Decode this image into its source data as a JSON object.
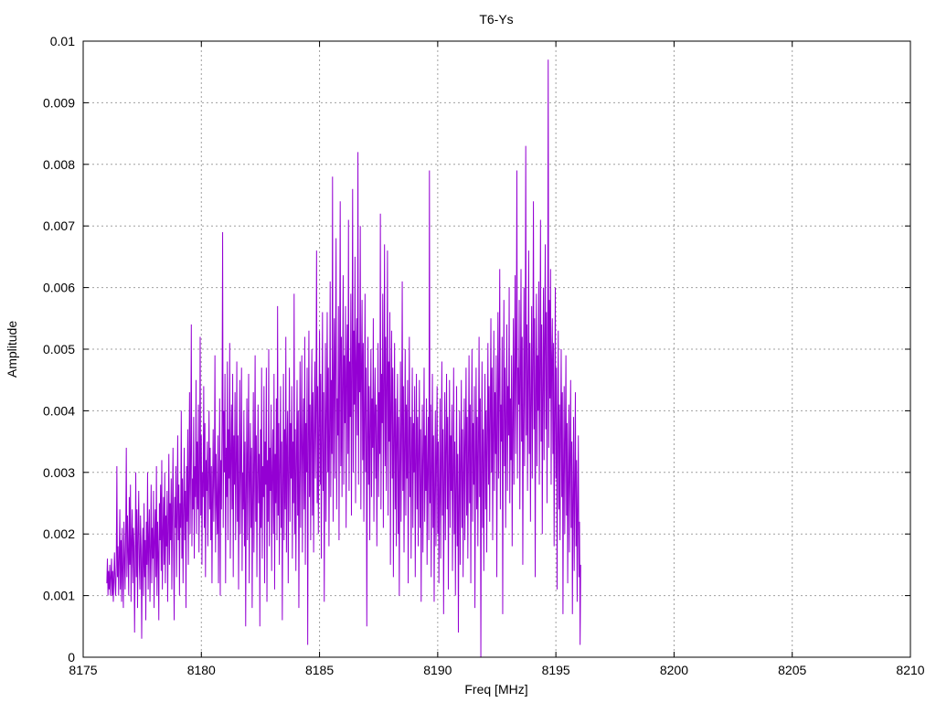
{
  "chart_data": {
    "type": "line",
    "title": "T6-Ys",
    "xlabel": "Freq [MHz]",
    "ylabel": "Amplitude",
    "xlim": [
      8175,
      8210
    ],
    "ylim": [
      0,
      0.01
    ],
    "x_ticks": [
      "8175",
      "8180",
      "8185",
      "8190",
      "8195",
      "8200",
      "8205",
      "8210"
    ],
    "y_ticks": [
      "0",
      "0.001",
      "0.002",
      "0.003",
      "0.004",
      "0.005",
      "0.006",
      "0.007",
      "0.008",
      "0.009",
      "0.01"
    ],
    "grid": true,
    "legend": "none",
    "series": [
      {
        "color": "#9400d3",
        "x_start": 8176.0,
        "x_step": 0.025,
        "values": [
          0.0012,
          0.0016,
          0.001,
          0.0014,
          0.0011,
          0.0015,
          0.001,
          0.0013,
          0.0016,
          0.001,
          0.0014,
          0.0009,
          0.0013,
          0.0017,
          0.0012,
          0.001,
          0.0015,
          0.0031,
          0.0013,
          0.0018,
          0.001,
          0.0016,
          0.0024,
          0.0011,
          0.0019,
          0.0009,
          0.0021,
          0.0014,
          0.0008,
          0.0022,
          0.0016,
          0.0011,
          0.002,
          0.0034,
          0.0013,
          0.0023,
          0.0017,
          0.001,
          0.0026,
          0.0015,
          0.0028,
          0.0009,
          0.0019,
          0.0024,
          0.0012,
          0.0021,
          0.0018,
          0.0004,
          0.0016,
          0.003,
          0.0013,
          0.0024,
          0.0008,
          0.002,
          0.0027,
          0.0015,
          0.0011,
          0.0023,
          0.0018,
          0.0003,
          0.0016,
          0.0021,
          0.001,
          0.0025,
          0.0013,
          0.0019,
          0.0006,
          0.0022,
          0.0015,
          0.003,
          0.0011,
          0.0019,
          0.0024,
          0.0009,
          0.0017,
          0.0028,
          0.0012,
          0.0021,
          0.0016,
          0.0027,
          0.0008,
          0.0019,
          0.0024,
          0.0013,
          0.0031,
          0.001,
          0.0022,
          0.0017,
          0.0006,
          0.0025,
          0.0019,
          0.0028,
          0.0014,
          0.0032,
          0.0011,
          0.002,
          0.0026,
          0.0015,
          0.003,
          0.0012,
          0.0023,
          0.0018,
          0.0027,
          0.0009,
          0.0021,
          0.0033,
          0.0015,
          0.0025,
          0.0019,
          0.0029,
          0.0011,
          0.0024,
          0.0034,
          0.0018,
          0.0006,
          0.0026,
          0.0021,
          0.0031,
          0.0013,
          0.0023,
          0.0036,
          0.0019,
          0.0028,
          0.001,
          0.0025,
          0.0021,
          0.004,
          0.0016,
          0.0029,
          0.0012,
          0.0024,
          0.0034,
          0.0019,
          0.0027,
          0.0008,
          0.0031,
          0.0022,
          0.0037,
          0.0015,
          0.0028,
          0.0043,
          0.002,
          0.0033,
          0.0054,
          0.0018,
          0.0029,
          0.0024,
          0.0039,
          0.0016,
          0.0031,
          0.0026,
          0.0045,
          0.002,
          0.0035,
          0.0024,
          0.0041,
          0.0017,
          0.0029,
          0.0052,
          0.0023,
          0.0036,
          0.0015,
          0.003,
          0.0026,
          0.0044,
          0.0021,
          0.0038,
          0.0013,
          0.0032,
          0.0027,
          0.0035,
          0.0018,
          0.0029,
          0.004,
          0.0024,
          0.0034,
          0.0019,
          0.0031,
          0.0012,
          0.0027,
          0.0037,
          0.0022,
          0.003,
          0.0049,
          0.0017,
          0.0033,
          0.0025,
          0.002,
          0.0036,
          0.0012,
          0.0028,
          0.0042,
          0.001,
          0.0032,
          0.0024,
          0.0038,
          0.0069,
          0.0021,
          0.004,
          0.003,
          0.0046,
          0.0012,
          0.0034,
          0.0026,
          0.0048,
          0.0019,
          0.0037,
          0.0029,
          0.0051,
          0.0016,
          0.0033,
          0.0041,
          0.0024,
          0.0046,
          0.0013,
          0.0036,
          0.0028,
          0.0043,
          0.0019,
          0.0031,
          0.0048,
          0.0022,
          0.0036,
          0.0011,
          0.0029,
          0.0045,
          0.002,
          0.0033,
          0.0047,
          0.0014,
          0.003,
          0.0024,
          0.004,
          0.0018,
          0.0035,
          0.0005,
          0.0027,
          0.0042,
          0.0019,
          0.0033,
          0.0046,
          0.0012,
          0.0029,
          0.0038,
          0.0021,
          0.0034,
          0.0008,
          0.0026,
          0.0043,
          0.0017,
          0.0031,
          0.0049,
          0.0022,
          0.0036,
          0.0013,
          0.0029,
          0.0041,
          0.0025,
          0.0033,
          0.0005,
          0.0037,
          0.0021,
          0.0047,
          0.0016,
          0.0031,
          0.0026,
          0.0044,
          0.0012,
          0.0035,
          0.0028,
          0.0047,
          0.0009,
          0.0032,
          0.0022,
          0.005,
          0.0018,
          0.0034,
          0.0027,
          0.0041,
          0.0014,
          0.003,
          0.0037,
          0.002,
          0.0046,
          0.0011,
          0.0033,
          0.0025,
          0.0042,
          0.0019,
          0.0057,
          0.0023,
          0.0038,
          0.0015,
          0.0031,
          0.0044,
          0.0021,
          0.0035,
          0.0006,
          0.0028,
          0.0046,
          0.0019,
          0.0037,
          0.0024,
          0.0052,
          0.0017,
          0.0034,
          0.004,
          0.0012,
          0.0031,
          0.0047,
          0.0022,
          0.0038,
          0.0029,
          0.0044,
          0.0016,
          0.0035,
          0.0025,
          0.0059,
          0.002,
          0.0037,
          0.0014,
          0.0032,
          0.0045,
          0.0023,
          0.004,
          0.0008,
          0.0029,
          0.0048,
          0.0021,
          0.0036,
          0.0049,
          0.0017,
          0.0034,
          0.0042,
          0.0024,
          0.0052,
          0.0015,
          0.0038,
          0.003,
          0.0047,
          0.0002,
          0.0035,
          0.0053,
          0.0026,
          0.0041,
          0.0019,
          0.0038,
          0.005,
          0.0023,
          0.0043,
          0.0017,
          0.0036,
          0.0048,
          0.0029,
          0.0041,
          0.0066,
          0.0025,
          0.0044,
          0.002,
          0.0038,
          0.0053,
          0.0028,
          0.0046,
          0.0016,
          0.0036,
          0.0056,
          0.0027,
          0.0043,
          0.0009,
          0.0034,
          0.0051,
          0.0022,
          0.0039,
          0.0056,
          0.003,
          0.0047,
          0.0018,
          0.0037,
          0.0061,
          0.0026,
          0.0045,
          0.0033,
          0.0078,
          0.0022,
          0.0044,
          0.0055,
          0.0029,
          0.005,
          0.0068,
          0.0024,
          0.0042,
          0.0036,
          0.0057,
          0.0019,
          0.0047,
          0.0074,
          0.0031,
          0.0052,
          0.0026,
          0.0045,
          0.0062,
          0.0028,
          0.0049,
          0.0038,
          0.0057,
          0.0021,
          0.0046,
          0.0054,
          0.0033,
          0.0071,
          0.0027,
          0.0048,
          0.0039,
          0.0059,
          0.0023,
          0.0046,
          0.0076,
          0.003,
          0.0053,
          0.0041,
          0.0065,
          0.0025,
          0.0048,
          0.0055,
          0.0036,
          0.0082,
          0.0028,
          0.0051,
          0.0043,
          0.007,
          0.0024,
          0.0047,
          0.0058,
          0.0032,
          0.0051,
          0.0022,
          0.0039,
          0.0059,
          0.003,
          0.0047,
          0.0005,
          0.0034,
          0.0052,
          0.0028,
          0.0044,
          0.0019,
          0.0038,
          0.005,
          0.0026,
          0.0042,
          0.0034,
          0.0055,
          0.0022,
          0.0039,
          0.0047,
          0.0029,
          0.0041,
          0.0018,
          0.0035,
          0.0051,
          0.0026,
          0.0043,
          0.0033,
          0.0072,
          0.0024,
          0.0046,
          0.0038,
          0.0059,
          0.0021,
          0.0044,
          0.0067,
          0.0031,
          0.0052,
          0.0027,
          0.0045,
          0.0066,
          0.0023,
          0.0048,
          0.0035,
          0.0056,
          0.0015,
          0.0041,
          0.0053,
          0.0029,
          0.0047,
          0.0013,
          0.0036,
          0.0051,
          0.0024,
          0.0042,
          0.0018,
          0.0037,
          0.0046,
          0.002,
          0.0039,
          0.001,
          0.0031,
          0.0048,
          0.0022,
          0.0036,
          0.0061,
          0.0027,
          0.0044,
          0.0017,
          0.0035,
          0.005,
          0.0023,
          0.0041,
          0.0029,
          0.0045,
          0.0012,
          0.0034,
          0.0052,
          0.0026,
          0.0039,
          0.0016,
          0.0033,
          0.0047,
          0.0021,
          0.0038,
          0.003,
          0.0044,
          0.0013,
          0.0032,
          0.0046,
          0.0024,
          0.0039,
          0.0018,
          0.0034,
          0.0045,
          0.0021,
          0.0037,
          0.0009,
          0.0029,
          0.0041,
          0.0017,
          0.0033,
          0.0047,
          0.0022,
          0.0036,
          0.0027,
          0.0042,
          0.0015,
          0.0031,
          0.0039,
          0.0019,
          0.0079,
          0.0025,
          0.0041,
          0.0013,
          0.003,
          0.0046,
          0.0021,
          0.0036,
          0.0009,
          0.0028,
          0.004,
          0.0018,
          0.0033,
          0.0044,
          0.002,
          0.0035,
          0.0012,
          0.0027,
          0.0042,
          0.0016,
          0.0031,
          0.0048,
          0.0023,
          0.0037,
          0.0007,
          0.0029,
          0.0043,
          0.0019,
          0.0034,
          0.0046,
          0.0024,
          0.0039,
          0.0011,
          0.0031,
          0.0045,
          0.0021,
          0.0036,
          0.0027,
          0.0041,
          0.0014,
          0.003,
          0.0047,
          0.002,
          0.0035,
          0.001,
          0.0028,
          0.0044,
          0.0018,
          0.0033,
          0.0004,
          0.0026,
          0.004,
          0.0015,
          0.0031,
          0.0045,
          0.0021,
          0.0037,
          0.0013,
          0.003,
          0.0042,
          0.0019,
          0.0035,
          0.0047,
          0.0023,
          0.0039,
          0.0016,
          0.0032,
          0.0049,
          0.0025,
          0.0041,
          0.0012,
          0.0034,
          0.005,
          0.0022,
          0.0038,
          0.0028,
          0.0044,
          0.0008,
          0.0031,
          0.0047,
          0.0024,
          0.0039,
          0.0018,
          0.0035,
          0.0052,
          0.0026,
          0.0042,
          0.0,
          0.0032,
          0.0048,
          0.0021,
          0.0037,
          0.0014,
          0.0033,
          0.0046,
          0.0024,
          0.004,
          0.0017,
          0.0036,
          0.0051,
          0.0028,
          0.0044,
          0.0022,
          0.0039,
          0.0055,
          0.003,
          0.0047,
          0.0019,
          0.0037,
          0.0053,
          0.0027,
          0.0043,
          0.0033,
          0.0049,
          0.0013,
          0.0038,
          0.0056,
          0.0029,
          0.0045,
          0.0063,
          0.0024,
          0.0041,
          0.0035,
          0.0052,
          0.0007,
          0.0039,
          0.0058,
          0.0031,
          0.0047,
          0.0021,
          0.004,
          0.0054,
          0.0027,
          0.0044,
          0.0036,
          0.006,
          0.0025,
          0.0042,
          0.0032,
          0.0049,
          0.0018,
          0.0038,
          0.0055,
          0.0028,
          0.0046,
          0.0062,
          0.0033,
          0.0049,
          0.0079,
          0.0029,
          0.0047,
          0.0041,
          0.0058,
          0.0024,
          0.0045,
          0.0063,
          0.0035,
          0.0052,
          0.0015,
          0.0039,
          0.006,
          0.0031,
          0.0048,
          0.0083,
          0.0036,
          0.0054,
          0.0027,
          0.0046,
          0.0066,
          0.0033,
          0.0051,
          0.0022,
          0.0042,
          0.0057,
          0.0029,
          0.0047,
          0.0074,
          0.0037,
          0.0055,
          0.0013,
          0.0043,
          0.0059,
          0.0031,
          0.0049,
          0.004,
          0.0061,
          0.0028,
          0.0046,
          0.0071,
          0.0035,
          0.0054,
          0.002,
          0.0044,
          0.006,
          0.0032,
          0.0052,
          0.0067,
          0.0037,
          0.0056,
          0.0025,
          0.0045,
          0.0097,
          0.0034,
          0.0058,
          0.0042,
          0.0063,
          0.0028,
          0.0049,
          0.0055,
          0.0033,
          0.0051,
          0.0018,
          0.0039,
          0.006,
          0.0029,
          0.0047,
          0.0011,
          0.0035,
          0.0053,
          0.0024,
          0.0041,
          0.0019,
          0.0037,
          0.005,
          0.0026,
          0.0043,
          0.0007,
          0.0031,
          0.0044,
          0.002,
          0.0036,
          0.0049,
          0.0023,
          0.0038,
          0.0012,
          0.0029,
          0.0041,
          0.0017,
          0.0033,
          0.0045,
          0.0021,
          0.0035,
          0.0007,
          0.0026,
          0.0039,
          0.0014,
          0.0028,
          0.0043,
          0.0018,
          0.0032,
          0.0009,
          0.0024,
          0.0036,
          0.0013,
          0.0022,
          0.0002,
          0.0015
        ]
      }
    ]
  }
}
